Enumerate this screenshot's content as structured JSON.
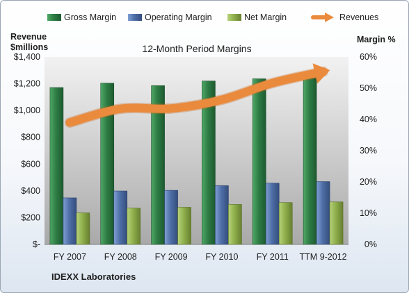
{
  "chart_data": {
    "type": "bar",
    "title": "12-Month Period Margins",
    "company": "IDEXX Laboratories",
    "left_axis_label_line1": "Revenue",
    "left_axis_label_line2": "$millions",
    "right_axis_label": "Margin %",
    "categories": [
      "FY 2007",
      "FY 2008",
      "FY 2009",
      "FY 2010",
      "FY 2011",
      "TTM 9-2012"
    ],
    "ylim_left": [
      0,
      1400
    ],
    "ylim_right": [
      0,
      60
    ],
    "left_ticks": [
      "$-",
      "$200",
      "$400",
      "$600",
      "$800",
      "$1,000",
      "$1,200",
      "$1,400"
    ],
    "right_ticks": [
      "0%",
      "10%",
      "20%",
      "30%",
      "40%",
      "50%",
      "60%"
    ],
    "series": [
      {
        "name": "Gross Margin",
        "axis": "right",
        "color": "#2e7d45",
        "values": [
          50.2,
          51.6,
          50.8,
          52.3,
          53.0,
          54.2
        ]
      },
      {
        "name": "Operating Margin",
        "axis": "right",
        "color": "#4f6fa8",
        "values": [
          14.9,
          17.1,
          17.3,
          18.8,
          19.6,
          20.1
        ]
      },
      {
        "name": "Net Margin",
        "axis": "right",
        "color": "#8fb04c",
        "values": [
          10.1,
          11.6,
          11.9,
          12.8,
          13.4,
          13.6
        ]
      }
    ],
    "line_series": {
      "name": "Revenues",
      "axis": "left",
      "color": "#ea8a3c",
      "values": [
        910,
        1013,
        1015,
        1080,
        1205,
        1290
      ]
    },
    "grid": false,
    "legend_position": "top"
  }
}
